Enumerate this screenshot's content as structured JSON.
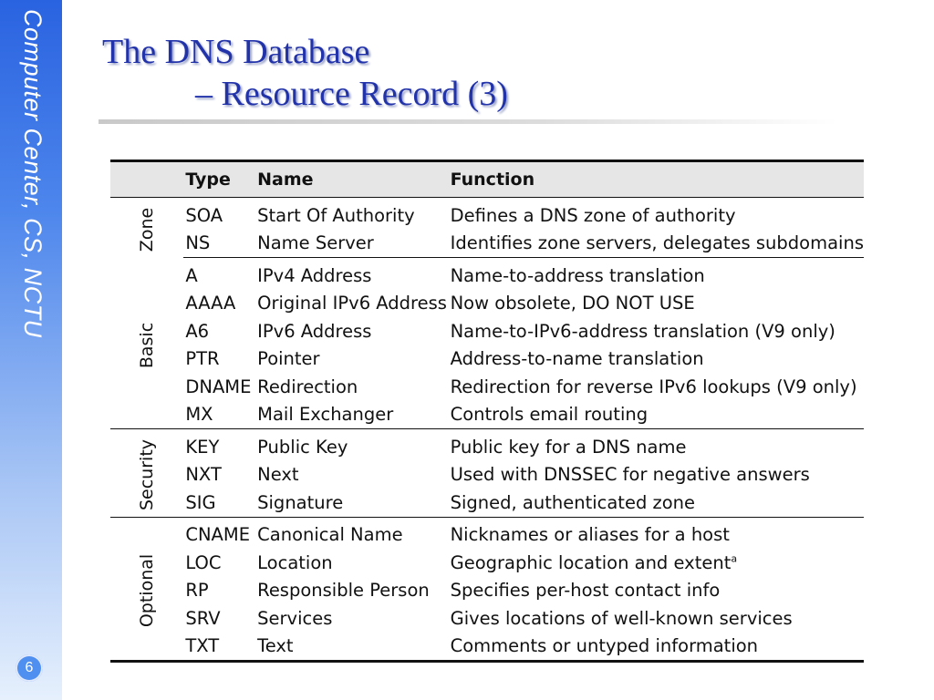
{
  "sidebar": {
    "text": "Computer Center, CS, NCTU"
  },
  "page_number": "6",
  "title": {
    "line1": "The DNS Database",
    "line2": "– Resource Record (3)"
  },
  "table": {
    "headers": {
      "group": "",
      "type": "Type",
      "name": "Name",
      "function": "Function"
    },
    "groups": [
      {
        "label": "Zone",
        "rows": [
          {
            "type": "SOA",
            "name": "Start Of Authority",
            "function": "Defines a DNS zone of authority"
          },
          {
            "type": "NS",
            "name": "Name Server",
            "function": "Identifies zone servers, delegates subdomains"
          }
        ]
      },
      {
        "label": "Basic",
        "rows": [
          {
            "type": "A",
            "name": "IPv4 Address",
            "function": "Name-to-address translation"
          },
          {
            "type": "AAAA",
            "name": "Original IPv6 Address",
            "function": "Now obsolete, DO NOT USE"
          },
          {
            "type": "A6",
            "name": "IPv6 Address",
            "function": "Name-to-IPv6-address translation (V9 only)"
          },
          {
            "type": "PTR",
            "name": "Pointer",
            "function": "Address-to-name translation"
          },
          {
            "type": "DNAME",
            "name": "Redirection",
            "function": "Redirection for reverse IPv6 lookups (V9 only)"
          },
          {
            "type": "MX",
            "name": "Mail Exchanger",
            "function": "Controls email routing"
          }
        ]
      },
      {
        "label": "Security",
        "rows": [
          {
            "type": "KEY",
            "name": "Public Key",
            "function": "Public key for a DNS name"
          },
          {
            "type": "NXT",
            "name": "Next",
            "function": "Used with DNSSEC for negative answers"
          },
          {
            "type": "SIG",
            "name": "Signature",
            "function": "Signed, authenticated zone"
          }
        ]
      },
      {
        "label": "Optional",
        "rows": [
          {
            "type": "CNAME",
            "name": "Canonical Name",
            "function": "Nicknames or aliases for a host"
          },
          {
            "type": "LOC",
            "name": "Location",
            "function": "Geographic location and extent",
            "footnote": "a"
          },
          {
            "type": "RP",
            "name": "Responsible Person",
            "function": "Specifies per-host contact info"
          },
          {
            "type": "SRV",
            "name": "Services",
            "function": "Gives locations of well-known services"
          },
          {
            "type": "TXT",
            "name": "Text",
            "function": "Comments or untyped information"
          }
        ]
      }
    ]
  },
  "colors": {
    "title": "#2233aa",
    "sidebar_top": "#2a63e0",
    "sidebar_bottom": "#e6f0fd",
    "badge": "#4f8ff0"
  }
}
